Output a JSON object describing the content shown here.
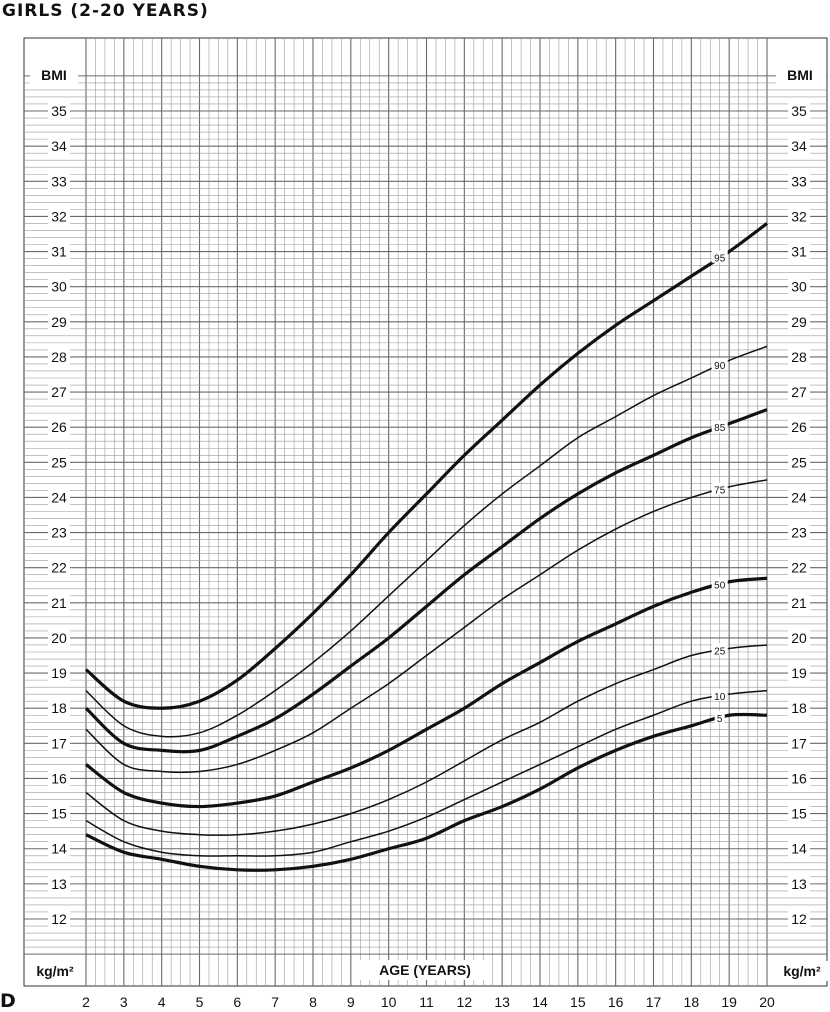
{
  "title": "GIRLS (2-20 YEARS)",
  "panel_letter": "D",
  "chart_data": {
    "type": "line",
    "title": "GIRLS (2-20 YEARS)",
    "xlabel": "AGE (YEARS)",
    "ylabel": "BMI",
    "yunit": "kg/m²",
    "xlim": [
      2,
      20
    ],
    "ylim": [
      11,
      36
    ],
    "x_ticks": [
      2,
      3,
      4,
      5,
      6,
      7,
      8,
      9,
      10,
      11,
      12,
      13,
      14,
      15,
      16,
      17,
      18,
      19,
      20
    ],
    "y_ticks": [
      12,
      13,
      14,
      15,
      16,
      17,
      18,
      19,
      20,
      21,
      22,
      23,
      24,
      25,
      26,
      27,
      28,
      29,
      30,
      31,
      32,
      33,
      34,
      35
    ],
    "grid": true,
    "x": [
      2,
      3,
      4,
      5,
      6,
      7,
      8,
      9,
      10,
      11,
      12,
      13,
      14,
      15,
      16,
      17,
      18,
      19,
      20
    ],
    "series": [
      {
        "name": "95",
        "bold": true,
        "values": [
          19.1,
          18.2,
          18.0,
          18.2,
          18.8,
          19.7,
          20.7,
          21.8,
          23.0,
          24.1,
          25.2,
          26.2,
          27.2,
          28.1,
          28.9,
          29.6,
          30.3,
          31.0,
          31.8
        ]
      },
      {
        "name": "90",
        "bold": false,
        "values": [
          18.5,
          17.5,
          17.2,
          17.3,
          17.8,
          18.5,
          19.3,
          20.2,
          21.2,
          22.2,
          23.2,
          24.1,
          24.9,
          25.7,
          26.3,
          26.9,
          27.4,
          27.9,
          28.3
        ]
      },
      {
        "name": "85",
        "bold": true,
        "values": [
          18.0,
          17.0,
          16.8,
          16.8,
          17.2,
          17.7,
          18.4,
          19.2,
          20.0,
          20.9,
          21.8,
          22.6,
          23.4,
          24.1,
          24.7,
          25.2,
          25.7,
          26.1,
          26.5
        ]
      },
      {
        "name": "75",
        "bold": false,
        "values": [
          17.4,
          16.4,
          16.2,
          16.2,
          16.4,
          16.8,
          17.3,
          18.0,
          18.7,
          19.5,
          20.3,
          21.1,
          21.8,
          22.5,
          23.1,
          23.6,
          24.0,
          24.3,
          24.5
        ]
      },
      {
        "name": "50",
        "bold": true,
        "values": [
          16.4,
          15.6,
          15.3,
          15.2,
          15.3,
          15.5,
          15.9,
          16.3,
          16.8,
          17.4,
          18.0,
          18.7,
          19.3,
          19.9,
          20.4,
          20.9,
          21.3,
          21.6,
          21.7
        ]
      },
      {
        "name": "25",
        "bold": false,
        "values": [
          15.6,
          14.8,
          14.5,
          14.4,
          14.4,
          14.5,
          14.7,
          15.0,
          15.4,
          15.9,
          16.5,
          17.1,
          17.6,
          18.2,
          18.7,
          19.1,
          19.5,
          19.7,
          19.8
        ]
      },
      {
        "name": "10",
        "bold": false,
        "values": [
          14.8,
          14.2,
          13.9,
          13.8,
          13.8,
          13.8,
          13.9,
          14.2,
          14.5,
          14.9,
          15.4,
          15.9,
          16.4,
          16.9,
          17.4,
          17.8,
          18.2,
          18.4,
          18.5
        ]
      },
      {
        "name": "5",
        "bold": true,
        "values": [
          14.4,
          13.9,
          13.7,
          13.5,
          13.4,
          13.4,
          13.5,
          13.7,
          14.0,
          14.3,
          14.8,
          15.2,
          15.7,
          16.3,
          16.8,
          17.2,
          17.5,
          17.8,
          17.8
        ]
      }
    ],
    "series_label_x": 18.75
  },
  "left_axis": {
    "top_label": "BMI",
    "bottom_label": "kg/m²"
  },
  "right_axis": {
    "top_label": "BMI",
    "bottom_label": "kg/m²"
  },
  "colors": {
    "line": "#111111",
    "grid_minor": "#9a9a9a",
    "grid_major": "#6a6a6a",
    "frame": "#333333"
  }
}
